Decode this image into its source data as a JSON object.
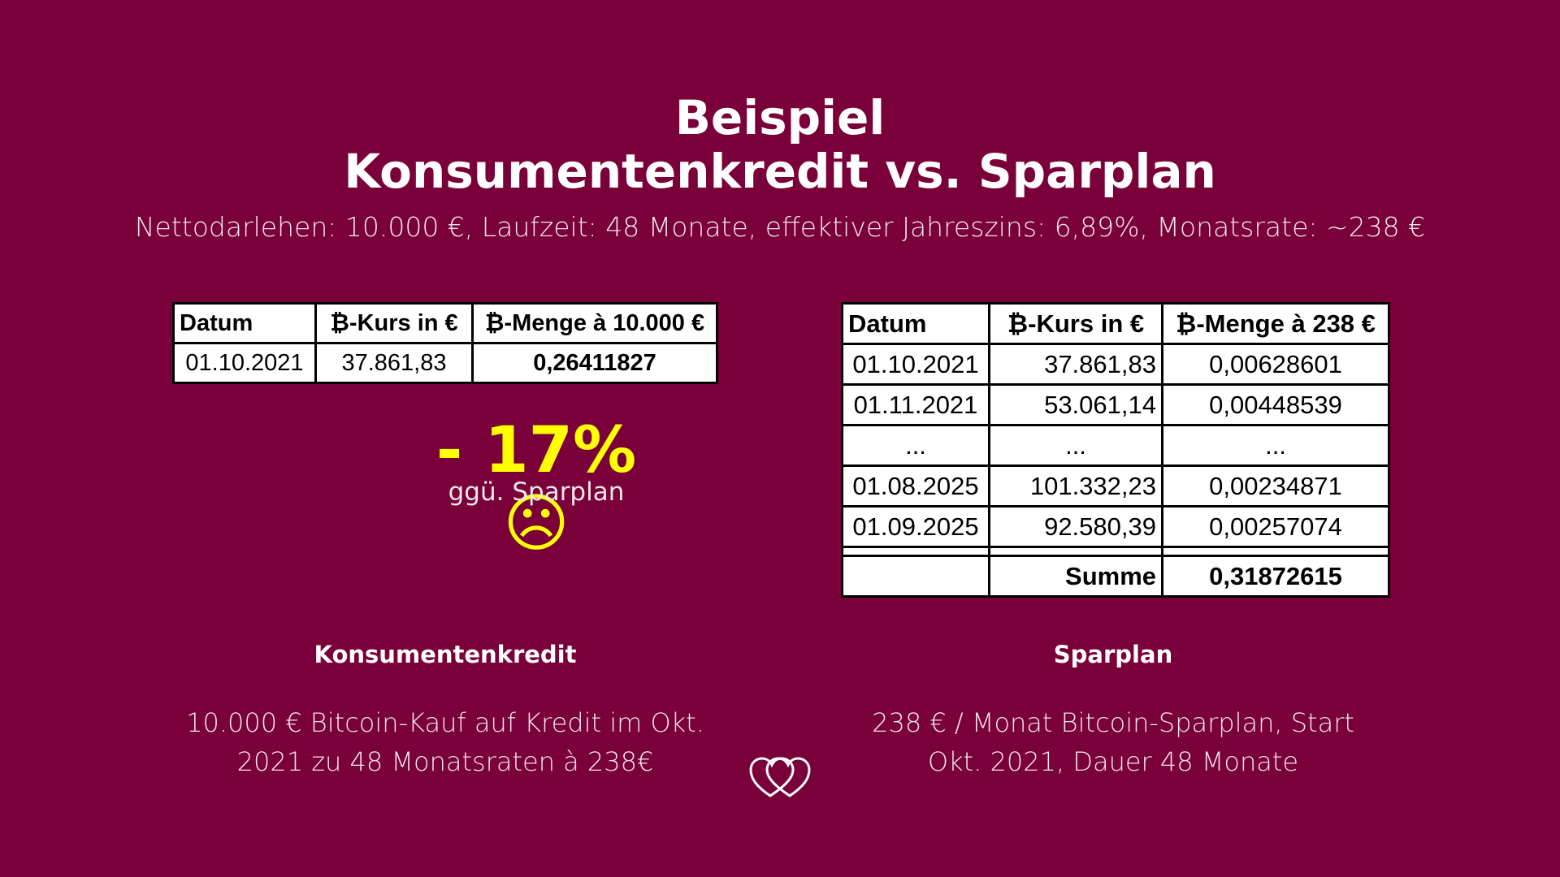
{
  "title": {
    "line1": "Beispiel",
    "line2": "Konsumentenkredit vs. Sparplan"
  },
  "subtitle": "Nettodarlehen: 10.000 €, Laufzeit: 48 Monate, effektiver Jahreszins: 6,89%, Monatsrate: ~238 €",
  "table_left": {
    "headers": [
      "Datum",
      "₿-Kurs in €",
      "₿-Menge à 10.000 €"
    ],
    "rows": [
      [
        "01.10.2021",
        "37.861,83",
        "0,26411827"
      ]
    ]
  },
  "result": {
    "value": "- 17% ☹",
    "caption": "ggü. Sparplan",
    "color": "#ffff00"
  },
  "table_right": {
    "headers": [
      "Datum",
      "₿-Kurs in €",
      "₿-Menge à 238 €"
    ],
    "rows": [
      [
        "01.10.2021",
        "37.861,83",
        "0,00628601"
      ],
      [
        "01.11.2021",
        "53.061,14",
        "0,00448539"
      ],
      [
        "...",
        "...",
        "..."
      ],
      [
        "01.08.2025",
        "101.332,23",
        "0,00234871"
      ],
      [
        "01.09.2025",
        "92.580,39",
        "0,00257074"
      ]
    ],
    "sum_label": "Summe",
    "sum_value": "0,31872615"
  },
  "left_column": {
    "heading": "Konsumentenkredit",
    "text_line1": "10.000 € Bitcoin-Kauf auf Kredit im Okt.",
    "text_line2": "2021 zu 48 Monatsraten à 238€"
  },
  "right_column": {
    "heading": "Sparplan",
    "text_line1": "238 € / Monat Bitcoin-Sparplan, Start",
    "text_line2": "Okt. 2021, Dauer 48 Monate"
  },
  "colors": {
    "background": "#7a0039",
    "text": "#ffffff",
    "highlight": "#ffff00"
  },
  "logo_icon": "intertwined-hearts-icon"
}
